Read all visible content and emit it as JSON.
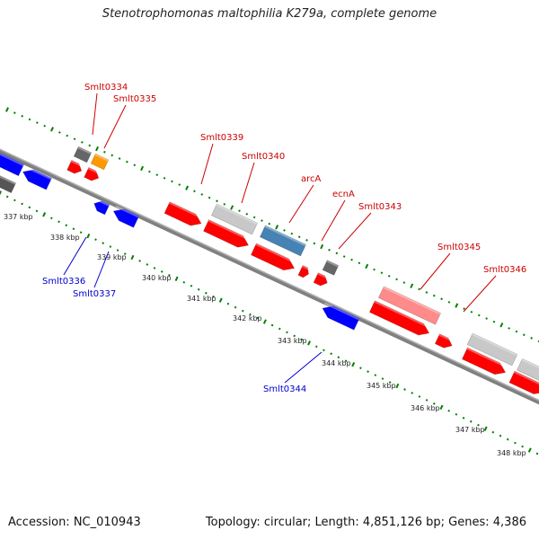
{
  "header": {
    "title": "Stenotrophomonas maltophilia K279a, complete genome"
  },
  "footer": {
    "accession": "Accession: NC_010943",
    "topology": "Topology: circular; Length: 4,851,126 bp; Genes: 4,386"
  },
  "colors": {
    "forward_gene": "#ff0000",
    "reverse_gene": "#0000ff",
    "label_forward": "#cc0000",
    "label_reverse": "#0000cc",
    "hypothetical": "#c8c8c8",
    "rna": "#666666",
    "orange_gene": "#ff9900",
    "steelblue_gene": "#4682b4",
    "pink_gene": "#ff8a8a",
    "gc_ring": "#008000",
    "backbone": "#808080"
  },
  "kbp_ticks": [
    "337 kbp",
    "338 kbp",
    "339 kbp",
    "340 kbp",
    "341 kbp",
    "342 kbp",
    "343 kbp",
    "344 kbp",
    "345 kbp",
    "346 kbp",
    "347 kbp",
    "348 kbp"
  ],
  "gene_labels": {
    "forward": [
      "Smlt0334",
      "Smlt0335",
      "Smlt0339",
      "Smlt0340",
      "arcA",
      "ecnA",
      "Smlt0343",
      "Smlt0345",
      "Smlt0346"
    ],
    "reverse": [
      "Smlt0336",
      "Smlt0337",
      "Smlt0344"
    ]
  }
}
